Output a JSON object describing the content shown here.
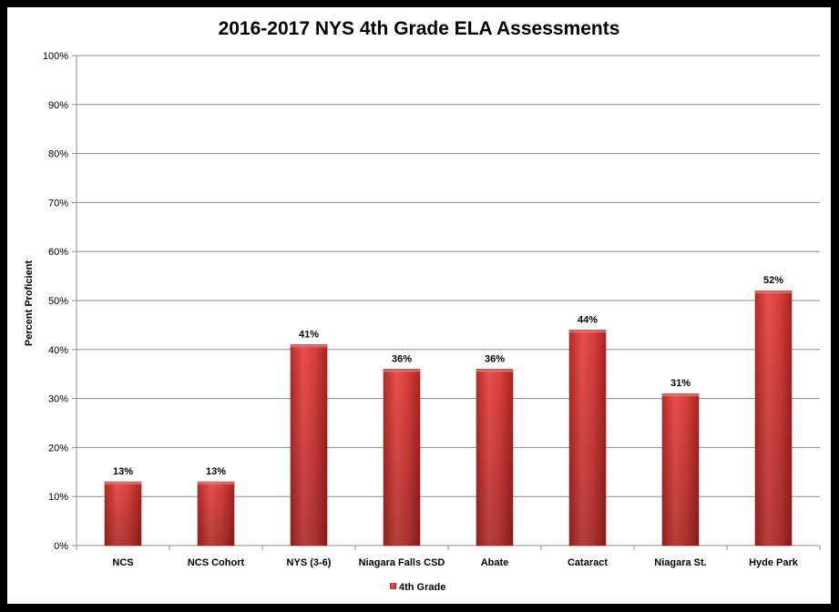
{
  "chart_data": {
    "type": "bar",
    "title": "2016-2017 NYS 4th Grade ELA Assessments",
    "ylabel": "Percent Proficient",
    "xlabel": "",
    "ylim": [
      0,
      100
    ],
    "ytick_step": 10,
    "ytick_suffix": "%",
    "grid": true,
    "legend_position": "bottom",
    "bar_color": "#d9403d",
    "categories": [
      "NCS",
      "NCS Cohort",
      "NYS (3-6)",
      "Niagara Falls CSD",
      "Abate",
      "Cataract",
      "Niagara St.",
      "Hyde Park"
    ],
    "series": [
      {
        "name": "4th Grade",
        "values": [
          13,
          13,
          41,
          36,
          36,
          44,
          31,
          52
        ],
        "labels": [
          "13%",
          "13%",
          "41%",
          "36%",
          "36%",
          "44%",
          "31%",
          "52%"
        ]
      }
    ]
  }
}
